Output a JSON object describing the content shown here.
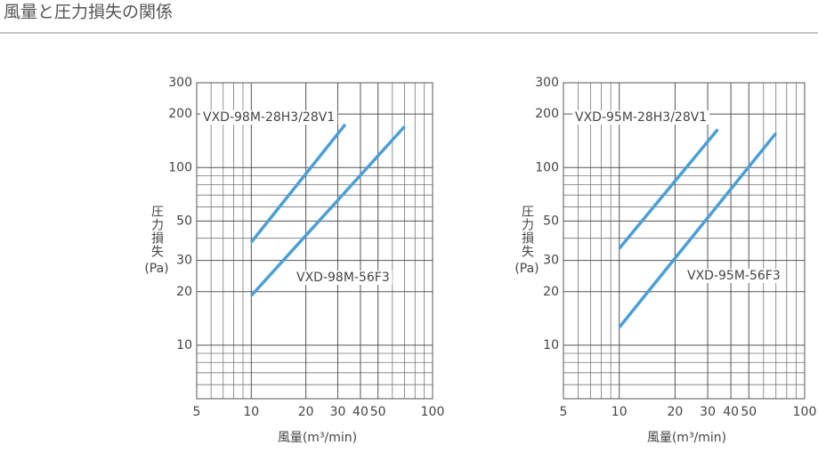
{
  "title": "風量と圧力損失の関係",
  "chart_data": [
    {
      "type": "line",
      "log_x": true,
      "log_y": true,
      "grid": true,
      "xlabel": "風量(m³/min)",
      "ylabel": "圧力損失",
      "yunit": "(Pa)",
      "xlim": [
        5,
        100
      ],
      "xticks": [
        5,
        10,
        20,
        30,
        40,
        50,
        100
      ],
      "ylim": [
        5,
        300
      ],
      "yticks": [
        10,
        20,
        30,
        50,
        100,
        200,
        300
      ],
      "series": [
        {
          "name": "VXD-98M-28H3/28V1",
          "color": "#4a9fd5",
          "x": [
            10,
            33
          ],
          "values": [
            38,
            175
          ]
        },
        {
          "name": "VXD-98M-56F3",
          "color": "#4a9fd5",
          "x": [
            10,
            70
          ],
          "values": [
            19,
            170
          ]
        }
      ]
    },
    {
      "type": "line",
      "log_x": true,
      "log_y": true,
      "grid": true,
      "xlabel": "風量(m³/min)",
      "ylabel": "圧力損失",
      "yunit": "(Pa)",
      "xlim": [
        5,
        100
      ],
      "xticks": [
        5,
        10,
        20,
        30,
        40,
        50,
        100
      ],
      "ylim": [
        5,
        300
      ],
      "yticks": [
        10,
        20,
        30,
        50,
        100,
        200,
        300
      ],
      "series": [
        {
          "name": "VXD-95M-28H3/28V1",
          "color": "#4a9fd5",
          "x": [
            10,
            34
          ],
          "values": [
            35,
            164
          ]
        },
        {
          "name": "VXD-95M-56F3",
          "color": "#4a9fd5",
          "x": [
            10,
            70
          ],
          "values": [
            12.6,
            156
          ]
        }
      ]
    }
  ]
}
